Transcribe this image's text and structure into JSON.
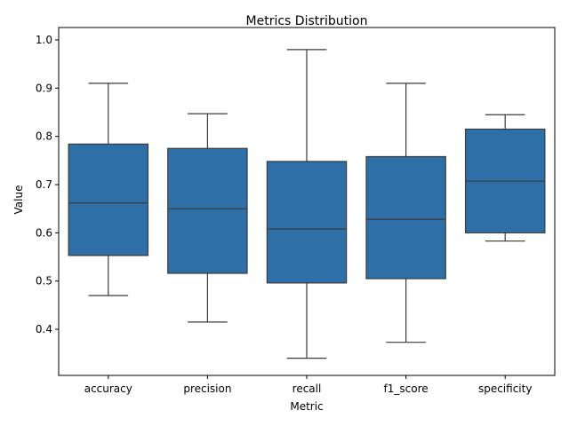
{
  "chart_data": {
    "type": "box",
    "title": "Metrics Distribution",
    "xlabel": "Metric",
    "ylabel": "Value",
    "ylim": [
      0.3,
      1.0
    ],
    "yticks": [
      "0.4",
      "0.5",
      "0.6",
      "0.7",
      "0.8",
      "0.9",
      "1.0"
    ],
    "categories": [
      "accuracy",
      "precision",
      "recall",
      "f1_score",
      "specificity"
    ],
    "boxes": [
      {
        "whisker_low": 0.47,
        "q1": 0.553,
        "median": 0.662,
        "q3": 0.784,
        "whisker_high": 0.91
      },
      {
        "whisker_low": 0.415,
        "q1": 0.516,
        "median": 0.65,
        "q3": 0.775,
        "whisker_high": 0.847
      },
      {
        "whisker_low": 0.34,
        "q1": 0.496,
        "median": 0.608,
        "q3": 0.748,
        "whisker_high": 0.98
      },
      {
        "whisker_low": 0.373,
        "q1": 0.505,
        "median": 0.628,
        "q3": 0.758,
        "whisker_high": 0.91
      },
      {
        "whisker_low": 0.583,
        "q1": 0.6,
        "median": 0.707,
        "q3": 0.815,
        "whisker_high": 0.845
      }
    ],
    "color": "#2f6fa8",
    "line_color": "#3a3a3a",
    "grid": false,
    "legend": "none"
  }
}
